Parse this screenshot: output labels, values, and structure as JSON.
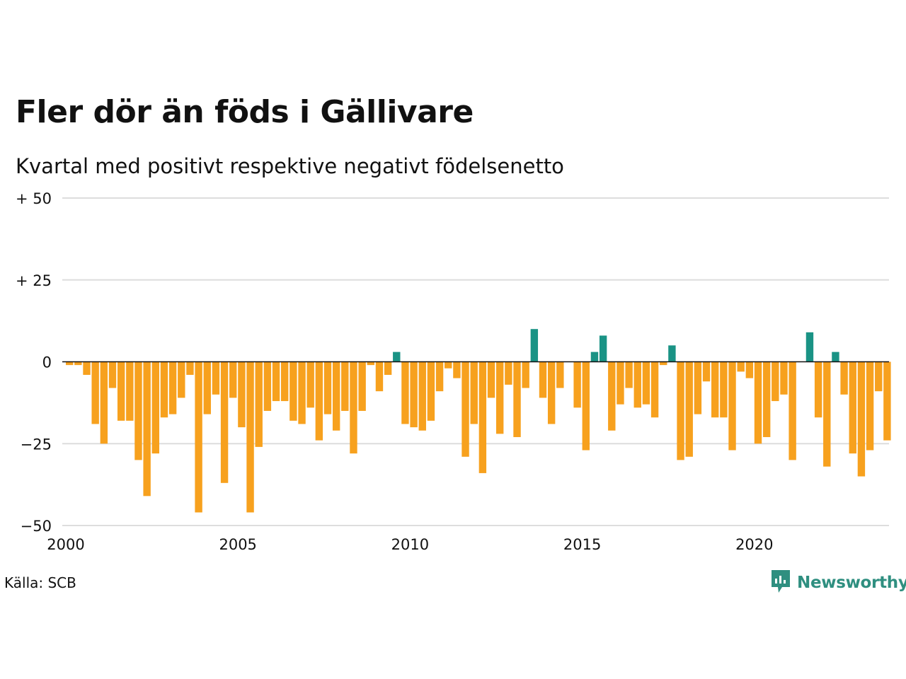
{
  "header": {
    "title": "Fler dör än föds i Gällivare",
    "subtitle": "Kvartal med positivt respektive negativt födelsenetto"
  },
  "footer": {
    "source": "Källa: SCB",
    "brand": "Newsworthy"
  },
  "colors": {
    "positive": "#1a9385",
    "negative": "#f7a11e",
    "gridline": "#dddddd",
    "brand": "#2f8f80"
  },
  "icons": {
    "logo": "newsworthy-chart-bubble-icon"
  },
  "chart_data": {
    "type": "bar",
    "title": "Fler dör än föds i Gällivare",
    "subtitle": "Kvartal med positivt respektive negativt födelsenetto",
    "xlabel": "",
    "ylabel": "",
    "ylim": [
      -50,
      50
    ],
    "xlim": [
      2000,
      2024
    ],
    "y_ticks": [
      50,
      25,
      0,
      -25,
      -50
    ],
    "y_tick_labels": [
      "+ 50",
      "+ 25",
      "0",
      "−25",
      "−50"
    ],
    "x_ticks": [
      2000,
      2005,
      2010,
      2015,
      2020
    ],
    "x_tick_labels": [
      "2000",
      "2005",
      "2010",
      "2015",
      "2020"
    ],
    "grid": true,
    "legend": "none",
    "start_period": "2000 Q1",
    "period": "quarter",
    "values": [
      -1,
      -1,
      -4,
      -19,
      -25,
      -8,
      -18,
      -18,
      -30,
      -41,
      -28,
      -17,
      -16,
      -11,
      -4,
      -46,
      -16,
      -10,
      -37,
      -11,
      -20,
      -46,
      -26,
      -15,
      -12,
      -12,
      -18,
      -19,
      -14,
      -24,
      -16,
      -21,
      -15,
      -28,
      -15,
      -1,
      -9,
      -4,
      3,
      -19,
      -20,
      -21,
      -18,
      -9,
      -2,
      -5,
      -29,
      -19,
      -34,
      -11,
      -22,
      -7,
      -23,
      -8,
      10,
      -11,
      -19,
      -8,
      0,
      -14,
      -27,
      3,
      8,
      -21,
      -13,
      -8,
      -14,
      -13,
      -17,
      -1,
      5,
      -30,
      -29,
      -16,
      -6,
      -17,
      -17,
      -27,
      -3,
      -5,
      -25,
      -23,
      -12,
      -10,
      -30,
      0,
      9,
      -17,
      -32,
      3,
      -10,
      -28,
      -35,
      -27,
      -9,
      -24
    ]
  }
}
